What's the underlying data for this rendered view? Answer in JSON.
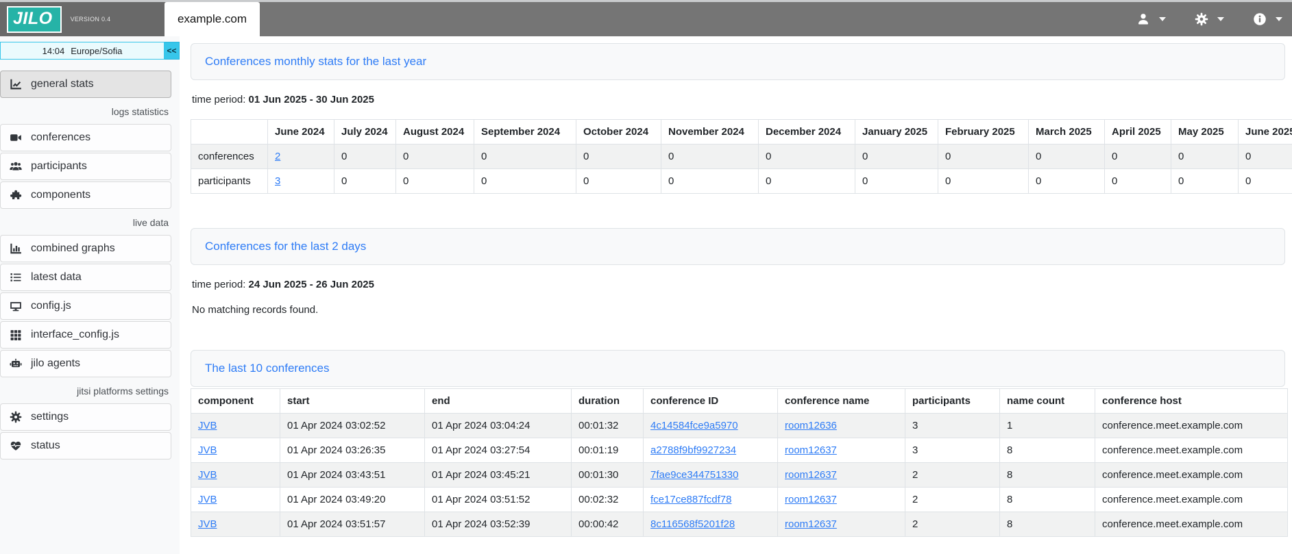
{
  "colors": {
    "accent_blue": "#2e7cf6",
    "brand_teal": "#26b3a7",
    "cyan": "#37c6ea",
    "topbar_gray": "#757575"
  },
  "topbar": {
    "logo_text": "JILO",
    "version": "VERSION 0.4",
    "active_tab": "example.com",
    "menus": [
      {
        "name": "user-menu",
        "icon": "user-icon"
      },
      {
        "name": "settings-menu",
        "icon": "gear-icon"
      },
      {
        "name": "info-menu",
        "icon": "info-icon"
      }
    ]
  },
  "sidebar": {
    "clock": {
      "time": "14:04",
      "timezone": "Europe/Sofia",
      "collapse_label": "<<"
    },
    "items": [
      {
        "type": "item",
        "icon": "chart-line-icon",
        "label": "general stats",
        "active": true
      },
      {
        "type": "section",
        "label": "logs statistics"
      },
      {
        "type": "item",
        "icon": "video-icon",
        "label": "conferences"
      },
      {
        "type": "item",
        "icon": "users-icon",
        "label": "participants"
      },
      {
        "type": "item",
        "icon": "puzzle-icon",
        "label": "components"
      },
      {
        "type": "section",
        "label": "live data"
      },
      {
        "type": "item",
        "icon": "chart-column-icon",
        "label": "combined graphs"
      },
      {
        "type": "item",
        "icon": "list-icon",
        "label": "latest data"
      },
      {
        "type": "item",
        "icon": "display-icon",
        "label": "config.js"
      },
      {
        "type": "item",
        "icon": "grid-icon",
        "label": "interface_config.js"
      },
      {
        "type": "item",
        "icon": "robot-icon",
        "label": "jilo agents"
      },
      {
        "type": "section",
        "label": "jitsi platforms settings"
      },
      {
        "type": "item",
        "icon": "gear-icon",
        "label": "settings"
      },
      {
        "type": "item",
        "icon": "heart-pulse-icon",
        "label": "status"
      }
    ]
  },
  "panels": {
    "monthly": {
      "title": "Conferences monthly stats for the last year",
      "time_period_label": "time period:",
      "time_period": "01 Jun 2025 - 30 Jun 2025",
      "table": {
        "columns": [
          "",
          "June 2024",
          "July 2024",
          "August 2024",
          "September 2024",
          "October 2024",
          "November 2024",
          "December 2024",
          "January 2025",
          "February 2025",
          "March 2025",
          "April 2025",
          "May 2025",
          "June 2025"
        ],
        "rows": [
          [
            "conferences",
            {
              "text": "2",
              "link": true
            },
            "0",
            "0",
            "0",
            "0",
            "0",
            "0",
            "0",
            "0",
            "0",
            "0",
            "0",
            "0"
          ],
          [
            "participants",
            {
              "text": "3",
              "link": true
            },
            "0",
            "0",
            "0",
            "0",
            "0",
            "0",
            "0",
            "0",
            "0",
            "0",
            "0",
            "0"
          ]
        ]
      }
    },
    "recent": {
      "title": "Conferences for the last 2 days",
      "time_period_label": "time period:",
      "time_period": "24 Jun 2025 - 26 Jun 2025",
      "empty_message": "No matching records found."
    },
    "last10": {
      "title": "The last 10 conferences",
      "table": {
        "columns": [
          "component",
          "start",
          "end",
          "duration",
          "conference ID",
          "conference name",
          "participants",
          "name count",
          "conference host"
        ],
        "rows": [
          [
            {
              "text": "JVB",
              "link": true
            },
            "01 Apr 2024 03:02:52",
            "01 Apr 2024 03:04:24",
            "00:01:32",
            {
              "text": "4c14584fce9a5970",
              "link": true
            },
            {
              "text": "room12636",
              "link": true
            },
            "3",
            "1",
            "conference.meet.example.com"
          ],
          [
            {
              "text": "JVB",
              "link": true
            },
            "01 Apr 2024 03:26:35",
            "01 Apr 2024 03:27:54",
            "00:01:19",
            {
              "text": "a2788f9bf9927234",
              "link": true
            },
            {
              "text": "room12637",
              "link": true
            },
            "3",
            "8",
            "conference.meet.example.com"
          ],
          [
            {
              "text": "JVB",
              "link": true
            },
            "01 Apr 2024 03:43:51",
            "01 Apr 2024 03:45:21",
            "00:01:30",
            {
              "text": "7fae9ce344751330",
              "link": true
            },
            {
              "text": "room12637",
              "link": true
            },
            "2",
            "8",
            "conference.meet.example.com"
          ],
          [
            {
              "text": "JVB",
              "link": true
            },
            "01 Apr 2024 03:49:20",
            "01 Apr 2024 03:51:52",
            "00:02:32",
            {
              "text": "fce17ce887fcdf78",
              "link": true
            },
            {
              "text": "room12637",
              "link": true
            },
            "2",
            "8",
            "conference.meet.example.com"
          ],
          [
            {
              "text": "JVB",
              "link": true
            },
            "01 Apr 2024 03:51:57",
            "01 Apr 2024 03:52:39",
            "00:00:42",
            {
              "text": "8c116568f5201f28",
              "link": true
            },
            {
              "text": "room12637",
              "link": true
            },
            "2",
            "8",
            "conference.meet.example.com"
          ]
        ]
      }
    }
  }
}
